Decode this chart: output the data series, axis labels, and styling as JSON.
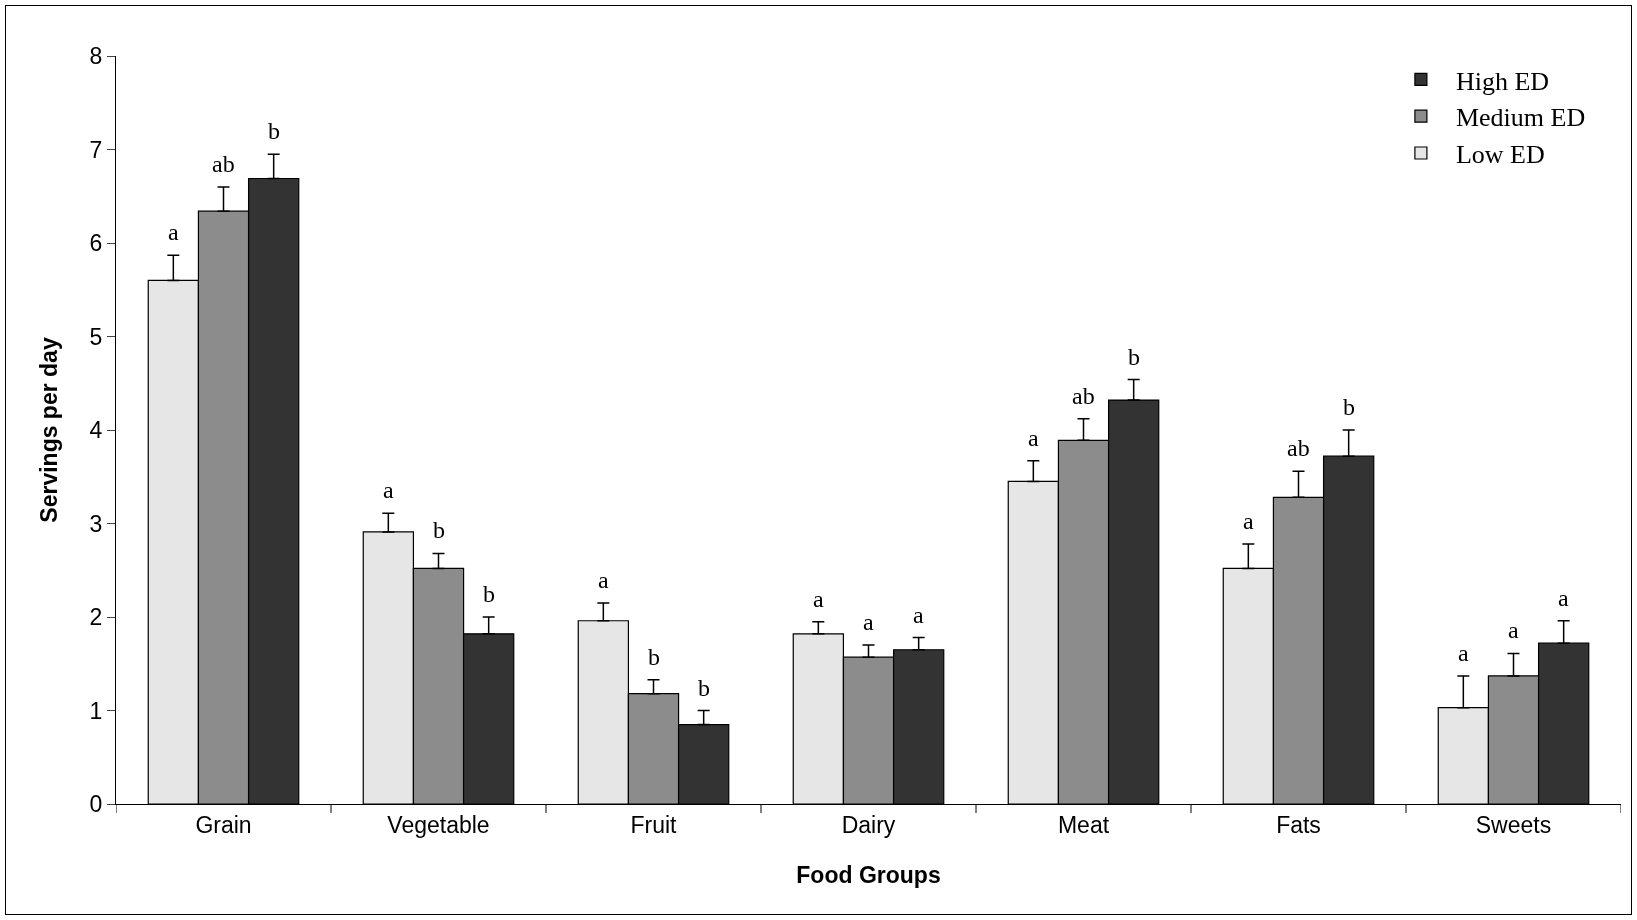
{
  "chart_data": {
    "type": "bar",
    "xlabel": "Food Groups",
    "ylabel": "Servings per day",
    "categories": [
      "Grain",
      "Vegetable",
      "Fruit",
      "Dairy",
      "Meat",
      "Fats",
      "Sweets"
    ],
    "ylim": [
      0,
      8
    ],
    "yticks": [
      0,
      1,
      2,
      3,
      4,
      5,
      6,
      7,
      8
    ],
    "grid": false,
    "legend": "top right",
    "series": [
      {
        "name": "Low ED",
        "color": "#e6e6e6",
        "values": [
          5.6,
          2.91,
          1.96,
          1.82,
          3.45,
          2.52,
          1.03
        ],
        "errors": [
          [
            5.6,
            5.87
          ],
          [
            2.91,
            3.11
          ],
          [
            1.96,
            2.15
          ],
          [
            1.82,
            1.95
          ],
          [
            3.45,
            3.67
          ],
          [
            2.52,
            2.78
          ],
          [
            1.03,
            1.37
          ]
        ],
        "value_labels": [
          "a",
          "a",
          "a",
          "a",
          "a",
          "a",
          "a"
        ]
      },
      {
        "name": "Medium ED",
        "color": "#8c8c8c",
        "values": [
          6.34,
          2.52,
          1.18,
          1.57,
          3.89,
          3.28,
          1.37
        ],
        "errors": [
          [
            6.34,
            6.6
          ],
          [
            2.52,
            2.68
          ],
          [
            1.18,
            1.33
          ],
          [
            1.57,
            1.7
          ],
          [
            3.89,
            4.12
          ],
          [
            3.28,
            3.56
          ],
          [
            1.37,
            1.61
          ]
        ],
        "value_labels": [
          "ab",
          "b",
          "b",
          "a",
          "ab",
          "ab",
          "a"
        ]
      },
      {
        "name": "High ED",
        "color": "#333333",
        "values": [
          6.69,
          1.82,
          0.85,
          1.65,
          4.32,
          3.72,
          1.72
        ],
        "errors": [
          [
            6.69,
            6.95
          ],
          [
            1.82,
            2.0
          ],
          [
            0.85,
            1.0
          ],
          [
            1.65,
            1.78
          ],
          [
            4.32,
            4.54
          ],
          [
            3.72,
            4.0
          ],
          [
            1.72,
            1.96
          ]
        ],
        "value_labels": [
          "b",
          "b",
          "b",
          "a",
          "b",
          "b",
          "a"
        ]
      }
    ]
  }
}
